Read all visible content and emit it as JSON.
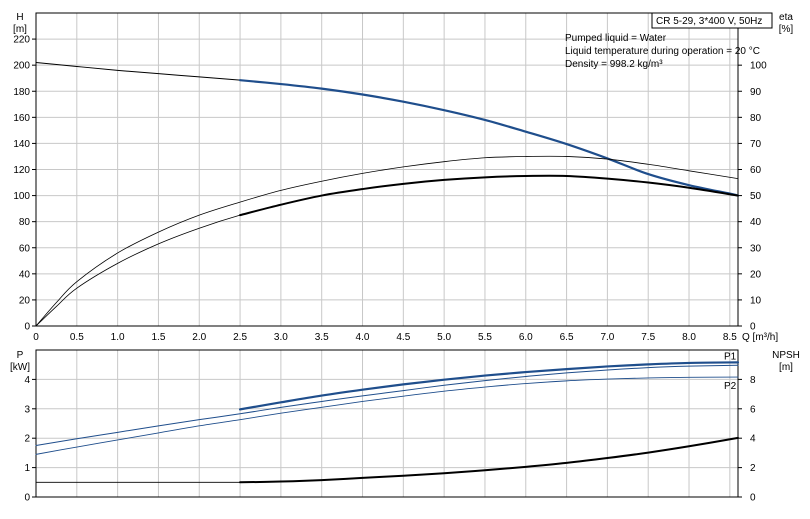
{
  "chart_data": [
    {
      "type": "line",
      "title": "",
      "xlabel": "Q [m³/h]",
      "xlim": [
        0,
        8.6
      ],
      "xticks": [
        "0",
        "0.5",
        "1.0",
        "1.5",
        "2.0",
        "2.5",
        "3.0",
        "3.5",
        "4.0",
        "4.5",
        "5.0",
        "5.5",
        "6.0",
        "6.5",
        "7.0",
        "7.5",
        "8.0",
        "8.5"
      ],
      "left_axis": {
        "label_line1": "H",
        "label_line2": "[m]",
        "ylim": [
          0,
          240
        ],
        "ticks": [
          "0",
          "20",
          "40",
          "60",
          "80",
          "100",
          "120",
          "140",
          "160",
          "180",
          "200",
          "220"
        ]
      },
      "right_axis": {
        "label_line1": "eta",
        "label_line2": "[%]",
        "ylim": [
          0,
          120
        ],
        "ticks": [
          "0",
          "10",
          "20",
          "30",
          "40",
          "50",
          "60",
          "70",
          "80",
          "90",
          "100"
        ]
      },
      "info": {
        "model": "CR 5-29, 3*400 V, 50Hz",
        "line1": "Pumped liquid = Water",
        "line2": "Liquid temperature during operation = 20 °C",
        "line3": "Density = 998.2 kg/m³"
      },
      "grid": true,
      "series": [
        {
          "axis": "left",
          "color": "#000000",
          "width": 1,
          "style": "thin",
          "x": [
            0,
            0.5,
            1.0,
            1.5,
            2.0,
            2.5,
            3.0,
            3.5,
            4.0,
            4.5,
            5.0,
            5.5,
            6.0,
            6.5,
            7.0,
            7.5,
            8.0,
            8.5,
            8.6
          ],
          "values": [
            202,
            199,
            196,
            193.5,
            191,
            188.5,
            185.5,
            182,
            177.5,
            172,
            165.5,
            158,
            149,
            139.5,
            128.5,
            116.5,
            108,
            101.5,
            100
          ]
        },
        {
          "axis": "left",
          "color": "#1f4e8c",
          "width": 2.2,
          "style": "thick",
          "x": [
            2.5,
            3.0,
            3.5,
            4.0,
            4.5,
            5.0,
            5.5,
            6.0,
            6.5,
            7.0,
            7.5,
            8.0,
            8.5,
            8.6
          ],
          "values": [
            188.5,
            185.5,
            182,
            177.5,
            172,
            165.5,
            158,
            149,
            139.5,
            128.5,
            116.5,
            108,
            101.5,
            100
          ]
        },
        {
          "axis": "right",
          "color": "#000000",
          "width": 0.8,
          "style": "thin",
          "x": [
            0,
            0.25,
            0.5,
            1.0,
            1.5,
            2.0,
            2.5,
            3.0,
            3.5,
            4.0,
            4.5,
            5.0,
            5.5,
            6.0,
            6.5,
            7.0,
            7.5,
            8.0,
            8.6
          ],
          "values": [
            0,
            9,
            17,
            28,
            36,
            42.5,
            47.5,
            52,
            55.5,
            58.5,
            61,
            63,
            64.5,
            65,
            65,
            64,
            62,
            59.5,
            56.5
          ]
        },
        {
          "axis": "right",
          "color": "#000000",
          "width": 0.8,
          "style": "thin",
          "x": [
            0,
            0.25,
            0.5,
            1.0,
            1.5,
            2.0,
            2.5,
            3.0,
            3.5,
            4.0,
            4.5,
            5.0,
            5.5,
            6.0,
            6.5,
            7.0,
            7.5,
            8.0,
            8.6
          ],
          "values": [
            0,
            7.5,
            14.5,
            24,
            31.5,
            37.5,
            42.5,
            46.5,
            50,
            52.5,
            54.5,
            56,
            57,
            57.5,
            57.5,
            56.5,
            55,
            53,
            50
          ]
        },
        {
          "axis": "right",
          "color": "#000000",
          "width": 2,
          "style": "thick",
          "x": [
            2.5,
            3.0,
            3.5,
            4.0,
            4.5,
            5.0,
            5.5,
            6.0,
            6.5,
            7.0,
            7.5,
            8.0,
            8.6
          ],
          "values": [
            42.5,
            46.5,
            50,
            52.5,
            54.5,
            56,
            57,
            57.5,
            57.5,
            56.5,
            55,
            53,
            50
          ]
        }
      ]
    },
    {
      "type": "line",
      "title": "",
      "xlabel": "",
      "xlim": [
        0,
        8.6
      ],
      "left_axis": {
        "label_line1": "P",
        "label_line2": "[kW]",
        "ylim": [
          0,
          5
        ],
        "ticks": [
          "0",
          "1",
          "2",
          "3",
          "4"
        ]
      },
      "right_axis": {
        "label_line1": "NPSH",
        "label_line2": "[m]",
        "ylim": [
          0,
          10
        ],
        "ticks": [
          "0",
          "2",
          "4",
          "6",
          "8"
        ]
      },
      "grid": true,
      "series": [
        {
          "name": "P1",
          "axis": "left",
          "color": "#1f4e8c",
          "width": 1,
          "style": "thin",
          "x": [
            0,
            0.5,
            1.0,
            1.5,
            2.0,
            2.5,
            3.0,
            3.5,
            4.0,
            4.5,
            5.0,
            5.5,
            6.0,
            6.5,
            7.0,
            7.5,
            8.0,
            8.6
          ],
          "values": [
            1.75,
            1.98,
            2.2,
            2.42,
            2.63,
            2.83,
            3.05,
            3.25,
            3.44,
            3.62,
            3.8,
            3.96,
            4.1,
            4.22,
            4.32,
            4.4,
            4.45,
            4.48
          ]
        },
        {
          "name": "",
          "axis": "left",
          "color": "#1f4e8c",
          "width": 2.2,
          "style": "thick",
          "x": [
            2.5,
            3.0,
            3.5,
            4.0,
            4.5,
            5.0,
            5.5,
            6.0,
            6.5,
            7.0,
            7.5,
            8.0,
            8.6
          ],
          "values": [
            2.98,
            3.22,
            3.45,
            3.65,
            3.83,
            3.99,
            4.13,
            4.25,
            4.35,
            4.44,
            4.51,
            4.56,
            4.58
          ]
        },
        {
          "name": "P2",
          "axis": "left",
          "color": "#1f4e8c",
          "width": 0.9,
          "style": "thin",
          "x": [
            0,
            0.5,
            1.0,
            1.5,
            2.0,
            2.5,
            3.0,
            3.5,
            4.0,
            4.5,
            5.0,
            5.5,
            6.0,
            6.5,
            7.0,
            7.5,
            8.0,
            8.6
          ],
          "values": [
            1.45,
            1.7,
            1.94,
            2.18,
            2.42,
            2.63,
            2.85,
            3.05,
            3.25,
            3.43,
            3.6,
            3.74,
            3.86,
            3.95,
            4.01,
            4.05,
            4.07,
            4.08
          ]
        },
        {
          "name": "",
          "axis": "right",
          "color": "#000000",
          "width": 0.9,
          "style": "thin",
          "x": [
            0,
            0.5,
            1.0,
            1.5,
            2.0,
            2.5
          ],
          "values": [
            1.0,
            1.0,
            1.0,
            1.0,
            1.0,
            1.0
          ]
        },
        {
          "name": "",
          "axis": "right",
          "color": "#000000",
          "width": 2,
          "style": "thick",
          "x": [
            2.5,
            3.0,
            3.5,
            4.0,
            4.5,
            5.0,
            5.5,
            6.0,
            6.5,
            7.0,
            7.5,
            8.0,
            8.6
          ],
          "values": [
            1.0,
            1.05,
            1.15,
            1.3,
            1.45,
            1.62,
            1.82,
            2.05,
            2.32,
            2.65,
            3.02,
            3.45,
            4.02
          ]
        }
      ]
    }
  ]
}
